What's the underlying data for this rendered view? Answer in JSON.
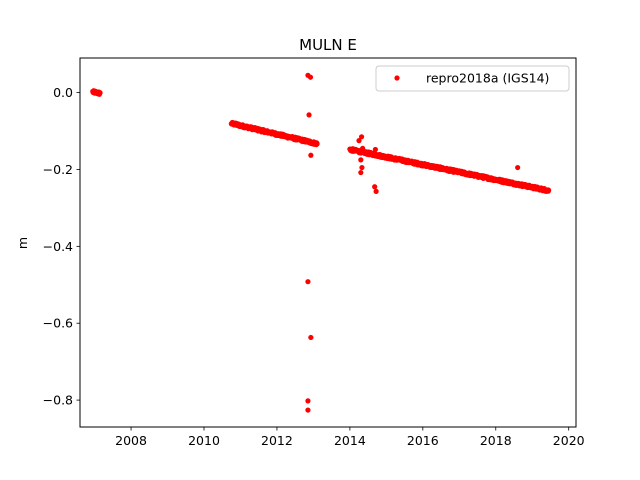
{
  "chart_data": {
    "type": "scatter",
    "title": "MULN E",
    "xlabel": "",
    "ylabel": "m",
    "xlim": [
      2006.6,
      2020.2
    ],
    "ylim": [
      -0.87,
      0.09
    ],
    "x_ticks": [
      2008,
      2010,
      2012,
      2014,
      2016,
      2018,
      2020
    ],
    "x_tick_labels": [
      "2008",
      "2010",
      "2012",
      "2014",
      "2016",
      "2018",
      "2020"
    ],
    "y_ticks": [
      0.0,
      -0.2,
      -0.4,
      -0.6,
      -0.8
    ],
    "y_tick_labels": [
      "0.0",
      "−0.2",
      "−0.4",
      "−0.6",
      "−0.8"
    ],
    "grid": false,
    "legend_position": "top-right",
    "series": [
      {
        "name": "repro2018a (IGS14)",
        "color": "#ff0000",
        "marker": "dot",
        "segments": [
          {
            "x_start": 2006.95,
            "x_end": 2007.15,
            "y_start": 0.002,
            "y_end": -0.002
          },
          {
            "x_start": 2010.75,
            "x_end": 2013.1,
            "y_start": -0.08,
            "y_end": -0.133
          },
          {
            "x_start": 2014.0,
            "x_end": 2019.45,
            "y_start": -0.148,
            "y_end": -0.255
          }
        ],
        "outliers": [
          {
            "x": 2012.85,
            "y": 0.045
          },
          {
            "x": 2012.92,
            "y": 0.04
          },
          {
            "x": 2012.88,
            "y": -0.058
          },
          {
            "x": 2012.93,
            "y": -0.163
          },
          {
            "x": 2012.85,
            "y": -0.492
          },
          {
            "x": 2012.93,
            "y": -0.637
          },
          {
            "x": 2012.85,
            "y": -0.802
          },
          {
            "x": 2012.85,
            "y": -0.826
          },
          {
            "x": 2014.25,
            "y": -0.125
          },
          {
            "x": 2014.32,
            "y": -0.115
          },
          {
            "x": 2014.35,
            "y": -0.145
          },
          {
            "x": 2014.3,
            "y": -0.175
          },
          {
            "x": 2014.33,
            "y": -0.195
          },
          {
            "x": 2014.3,
            "y": -0.208
          },
          {
            "x": 2014.7,
            "y": -0.148
          },
          {
            "x": 2014.68,
            "y": -0.245
          },
          {
            "x": 2014.72,
            "y": -0.257
          },
          {
            "x": 2018.6,
            "y": -0.195
          }
        ]
      }
    ]
  }
}
